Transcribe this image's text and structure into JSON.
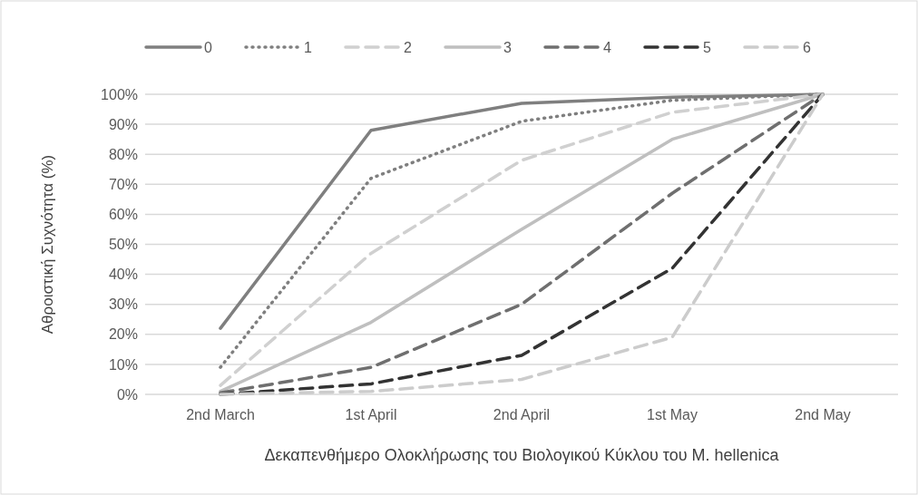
{
  "chart_data": {
    "type": "line",
    "xlabel": "Δεκαπενθήμερο Ολοκλήρωσης του Βιολογικού Κύκλου του M. hellenica",
    "ylabel": "Αθροιστική Συχνότητα (%)",
    "categories": [
      "2nd March",
      "1st April",
      "2nd April",
      "1st May",
      "2nd May"
    ],
    "ylim": [
      0,
      100
    ],
    "yticks": [
      {
        "value": 0,
        "label": "0%"
      },
      {
        "value": 10,
        "label": "10%"
      },
      {
        "value": 20,
        "label": "20%"
      },
      {
        "value": 30,
        "label": "30%"
      },
      {
        "value": 40,
        "label": "40%"
      },
      {
        "value": 50,
        "label": "50%"
      },
      {
        "value": 60,
        "label": "60%"
      },
      {
        "value": 70,
        "label": "70%"
      },
      {
        "value": 80,
        "label": "80%"
      },
      {
        "value": 90,
        "label": "90%"
      },
      {
        "value": 100,
        "label": "100%"
      }
    ],
    "grid": "y",
    "legend": "top",
    "series": [
      {
        "name": "0",
        "color": "#7f7f7f",
        "line_style": "solid",
        "values": [
          22,
          88,
          97,
          99,
          100
        ]
      },
      {
        "name": "1",
        "color": "#7f7f7f",
        "line_style": "dotted",
        "values": [
          9,
          72,
          91,
          98,
          100
        ]
      },
      {
        "name": "2",
        "color": "#d0d0d0",
        "line_style": "dashed",
        "values": [
          3,
          47,
          78,
          94,
          100
        ]
      },
      {
        "name": "3",
        "color": "#bfbfbf",
        "line_style": "solid",
        "values": [
          1,
          24,
          55,
          85,
          100
        ]
      },
      {
        "name": "4",
        "color": "#6f6f6f",
        "line_style": "dashed",
        "values": [
          0.5,
          9,
          30,
          67,
          100
        ]
      },
      {
        "name": "5",
        "color": "#333333",
        "line_style": "dashed",
        "values": [
          0,
          3.5,
          13,
          42,
          100
        ]
      },
      {
        "name": "6",
        "color": "#cccccc",
        "line_style": "dashed",
        "values": [
          0,
          1,
          5,
          19,
          100
        ]
      }
    ]
  }
}
